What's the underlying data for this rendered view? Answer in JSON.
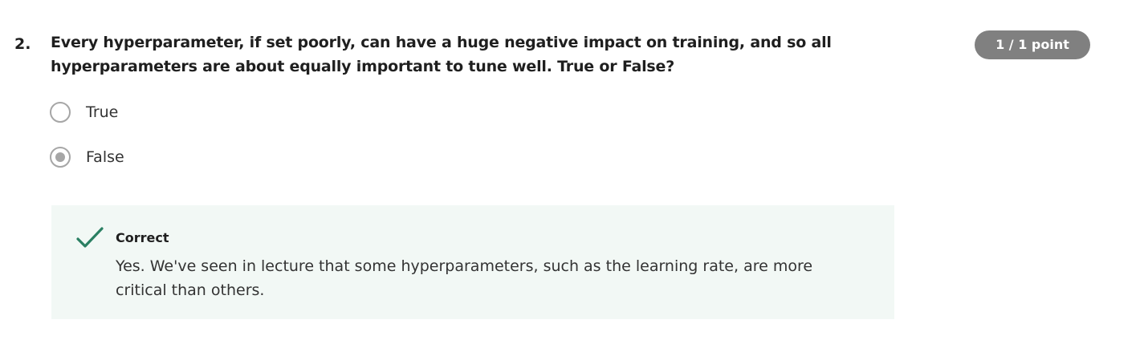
{
  "question": {
    "number": "2.",
    "text": "Every hyperparameter, if set poorly, can have a huge negative impact on training, and so all hyperparameters are about equally important to tune well. True or False?",
    "points": "1 / 1 point"
  },
  "options": [
    {
      "label": "True",
      "selected": false
    },
    {
      "label": "False",
      "selected": true
    }
  ],
  "feedback": {
    "status": "Correct",
    "icon": "checkmark-icon",
    "message": "Yes. We've seen in lecture that some hyperparameters, such as the learning rate, are more critical than others.",
    "accent_color": "#2a7f62",
    "background_color": "#f2f8f5"
  },
  "colors": {
    "badge": "#808080",
    "radio": "#a6a6a6"
  }
}
